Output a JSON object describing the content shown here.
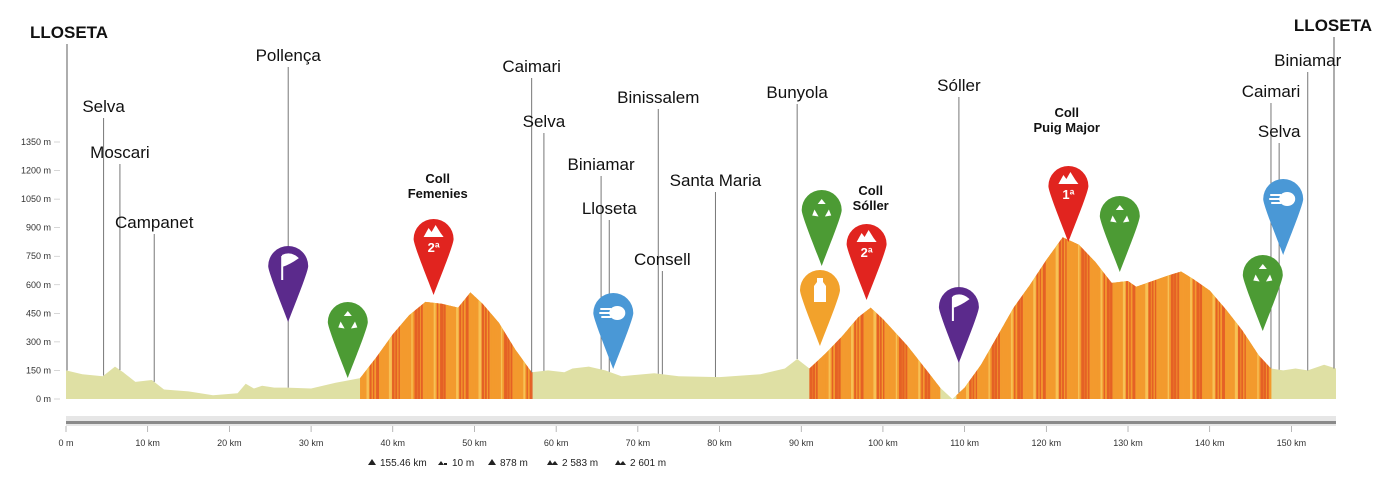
{
  "colors": {
    "base_fill": "#dfe0a4",
    "climb_orange": "#f39a2e",
    "climb_red": "#e35b25",
    "climb_yellow": "#f7c55a",
    "marker_red": "#e1241f",
    "marker_purple": "#5b2a8c",
    "marker_green": "#4c9b34",
    "marker_blue": "#4a98d6",
    "marker_orange": "#f2a22c",
    "line": "#777777",
    "axis_bar": "#9a9a9a"
  },
  "chart_data": {
    "type": "area",
    "title": "",
    "xlabel": "",
    "ylabel": "",
    "xlim": [
      0,
      155.46
    ],
    "ylim": [
      0,
      1350
    ],
    "y_ticks": [
      "0 m",
      "150 m",
      "300 m",
      "450 m",
      "600 m",
      "750 m",
      "900 m",
      "1050 m",
      "1200 m",
      "1350 m"
    ],
    "y_tick_values": [
      0,
      150,
      300,
      450,
      600,
      750,
      900,
      1050,
      1200,
      1350
    ],
    "x_ticks": [
      "0 m",
      "10 km",
      "20 km",
      "30 km",
      "40 km",
      "50 km",
      "60 km",
      "70 km",
      "80 km",
      "90 km",
      "100 km",
      "110 km",
      "120 km",
      "130 km",
      "140 km",
      "150 km"
    ],
    "x_tick_values": [
      0,
      10,
      20,
      30,
      40,
      50,
      60,
      70,
      80,
      90,
      100,
      110,
      120,
      130,
      140,
      150
    ],
    "profile": [
      [
        0,
        150
      ],
      [
        2,
        130
      ],
      [
        4.5,
        120
      ],
      [
        6,
        170
      ],
      [
        7,
        140
      ],
      [
        8.5,
        90
      ],
      [
        10.5,
        100
      ],
      [
        12,
        50
      ],
      [
        15,
        40
      ],
      [
        18,
        20
      ],
      [
        21,
        30
      ],
      [
        22,
        80
      ],
      [
        23,
        55
      ],
      [
        24,
        70
      ],
      [
        25.5,
        60
      ],
      [
        27,
        60
      ],
      [
        30,
        55
      ],
      [
        33,
        85
      ],
      [
        36,
        110
      ],
      [
        38,
        220
      ],
      [
        40,
        340
      ],
      [
        42,
        440
      ],
      [
        44,
        510
      ],
      [
        46,
        500
      ],
      [
        48,
        480
      ],
      [
        49.5,
        560
      ],
      [
        51,
        500
      ],
      [
        53,
        400
      ],
      [
        55,
        260
      ],
      [
        57,
        140
      ],
      [
        59,
        150
      ],
      [
        61,
        140
      ],
      [
        62,
        160
      ],
      [
        64,
        170
      ],
      [
        66,
        150
      ],
      [
        68,
        120
      ],
      [
        72,
        135
      ],
      [
        75,
        120
      ],
      [
        80,
        115
      ],
      [
        85,
        130
      ],
      [
        88,
        160
      ],
      [
        89.5,
        210
      ],
      [
        91,
        160
      ],
      [
        93,
        240
      ],
      [
        95,
        330
      ],
      [
        97,
        430
      ],
      [
        98.5,
        480
      ],
      [
        100,
        420
      ],
      [
        103,
        280
      ],
      [
        105,
        170
      ],
      [
        107,
        60
      ],
      [
        108.5,
        0
      ],
      [
        110,
        60
      ],
      [
        112,
        180
      ],
      [
        114,
        330
      ],
      [
        116,
        480
      ],
      [
        118,
        600
      ],
      [
        120,
        730
      ],
      [
        122,
        850
      ],
      [
        124,
        810
      ],
      [
        126,
        720
      ],
      [
        128,
        610
      ],
      [
        130,
        620
      ],
      [
        131,
        590
      ],
      [
        133,
        620
      ],
      [
        135,
        650
      ],
      [
        136.5,
        670
      ],
      [
        138,
        630
      ],
      [
        140,
        570
      ],
      [
        142,
        470
      ],
      [
        144,
        360
      ],
      [
        146,
        230
      ],
      [
        147.5,
        160
      ],
      [
        149,
        150
      ],
      [
        150.5,
        160
      ],
      [
        152,
        150
      ],
      [
        154,
        180
      ],
      [
        155.46,
        160
      ]
    ],
    "climbs": [
      {
        "from": 36,
        "to": 57,
        "name": "Coll Femenies"
      },
      {
        "from": 91,
        "to": 107,
        "name": "Coll Sóller"
      },
      {
        "from": 109,
        "to": 147.5,
        "name": "Coll Puig Major"
      }
    ]
  },
  "places": [
    {
      "name": "LLOSETA",
      "km": 0,
      "endpoint": true
    },
    {
      "name": "Selva",
      "km": 4.6
    },
    {
      "name": "Moscari",
      "km": 6.6
    },
    {
      "name": "Campanet",
      "km": 10.8
    },
    {
      "name": "Pollença",
      "km": 27.2
    },
    {
      "name": "Caimari",
      "km": 57.0
    },
    {
      "name": "Selva",
      "km": 58.5
    },
    {
      "name": "Biniamar",
      "km": 65.5
    },
    {
      "name": "Lloseta",
      "km": 66.5
    },
    {
      "name": "Binissalem",
      "km": 72.5
    },
    {
      "name": "Consell",
      "km": 73.0
    },
    {
      "name": "Santa Maria",
      "km": 79.5
    },
    {
      "name": "Bunyola",
      "km": 89.5
    },
    {
      "name": "Sóller",
      "km": 109.3
    },
    {
      "name": "Caimari",
      "km": 147.5
    },
    {
      "name": "Selva",
      "km": 148.5
    },
    {
      "name": "Biniamar",
      "km": 152.0
    },
    {
      "name": "LLOSETA",
      "km": 155.46,
      "endpoint": true
    }
  ],
  "climb_labels": [
    {
      "line1": "Coll",
      "line2": "Femenies",
      "km": 45.5
    },
    {
      "line1": "Coll",
      "line2": "Sóller",
      "km": 98.5
    },
    {
      "line1": "Coll",
      "line2": "Puig Major",
      "km": 122.5
    }
  ],
  "markers": [
    {
      "type": "kom",
      "label": "2ª",
      "km": 45.0,
      "color": "red",
      "icon": "mountain-icon"
    },
    {
      "type": "kom",
      "label": "2ª",
      "km": 98.0,
      "color": "red",
      "icon": "mountain-icon"
    },
    {
      "type": "kom",
      "label": "1ª",
      "km": 122.7,
      "color": "red",
      "icon": "mountain-icon"
    },
    {
      "type": "sprint",
      "label": "",
      "km": 27.2,
      "color": "purple",
      "icon": "flag-icon"
    },
    {
      "type": "sprint",
      "label": "",
      "km": 109.3,
      "color": "purple",
      "icon": "flag-icon"
    },
    {
      "type": "recycle",
      "label": "",
      "km": 34.5,
      "color": "green",
      "icon": "recycle-icon"
    },
    {
      "type": "recycle",
      "label": "",
      "km": 92.5,
      "color": "green",
      "icon": "recycle-icon"
    },
    {
      "type": "recycle",
      "label": "",
      "km": 129.0,
      "color": "green",
      "icon": "recycle-icon"
    },
    {
      "type": "recycle",
      "label": "",
      "km": 146.5,
      "color": "green",
      "icon": "recycle-icon"
    },
    {
      "type": "speed",
      "label": "",
      "km": 67.0,
      "color": "blue",
      "icon": "comet-icon"
    },
    {
      "type": "speed",
      "label": "",
      "km": 149.0,
      "color": "blue",
      "icon": "comet-icon"
    },
    {
      "type": "feed",
      "label": "",
      "km": 92.3,
      "color": "orange",
      "icon": "bottle-icon"
    }
  ],
  "stats": {
    "distance": "155.46 km",
    "min_alt": "10 m",
    "max_alt": "878 m",
    "ascent": "2 583 m",
    "descent": "2 601 m"
  }
}
